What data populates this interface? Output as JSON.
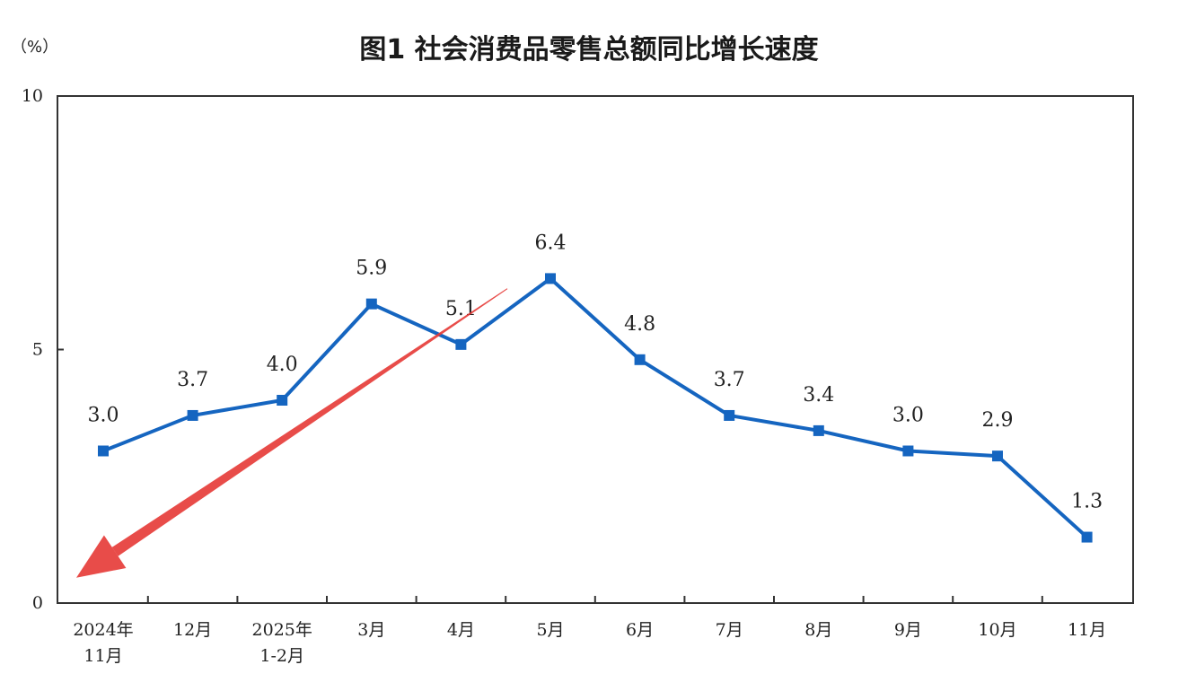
{
  "title": "图1 社会消费品零售总额同比增长速度",
  "unit": "（%）",
  "colors": {
    "line": "#1565c0",
    "axis": "#333333",
    "trend_arrow": "#e53935"
  },
  "chart_data": {
    "type": "line",
    "title": "图1 社会消费品零售总额同比增长速度",
    "ylabel": "（%）",
    "categories": [
      [
        "2024年",
        "11月"
      ],
      [
        "12月"
      ],
      [
        "2025年",
        "1-2月"
      ],
      [
        "3月"
      ],
      [
        "4月"
      ],
      [
        "5月"
      ],
      [
        "6月"
      ],
      [
        "7月"
      ],
      [
        "8月"
      ],
      [
        "9月"
      ],
      [
        "10月"
      ],
      [
        "11月"
      ]
    ],
    "values": [
      3.0,
      3.7,
      4.0,
      5.9,
      5.1,
      6.4,
      4.8,
      3.7,
      3.4,
      3.0,
      2.9,
      1.3
    ],
    "value_labels": [
      "3.0",
      "3.7",
      "4.0",
      "5.9",
      "5.1",
      "6.4",
      "4.8",
      "3.7",
      "3.4",
      "3.0",
      "2.9",
      "1.3"
    ],
    "ylim": [
      0,
      10
    ],
    "yticks": [
      "0",
      "5",
      "10"
    ],
    "grid": false,
    "annotations": [
      {
        "type": "arrow",
        "color": "#e53935",
        "from": {
          "x": "5月",
          "y": 6.2
        },
        "to": {
          "x": "11月",
          "y": 0.5
        }
      }
    ]
  }
}
